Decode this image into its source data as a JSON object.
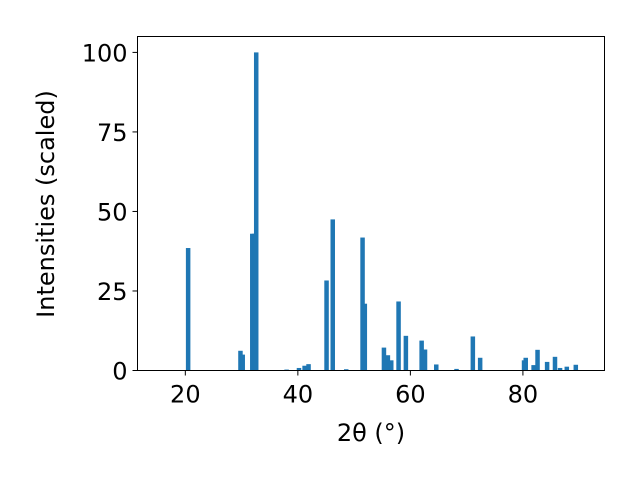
{
  "chart_data": {
    "type": "bar",
    "title": "",
    "xlabel": "2θ (°)",
    "ylabel": "Intensities (scaled)",
    "xlim": [
      11.5,
      94.5
    ],
    "ylim": [
      0,
      105
    ],
    "x_ticks": [
      20,
      40,
      60,
      80
    ],
    "y_ticks": [
      0,
      25,
      50,
      75,
      100
    ],
    "x_tick_labels": [
      "20",
      "40",
      "60",
      "80"
    ],
    "y_tick_labels": [
      "0",
      "25",
      "50",
      "75",
      "100"
    ],
    "grid": false,
    "bar_color": "#1f77b4",
    "bar_width": 0.8,
    "x": [
      20.5,
      29.8,
      30.2,
      31.9,
      32.3,
      32.6,
      38.0,
      40.2,
      41.2,
      41.9,
      45.1,
      46.2,
      48.6,
      51.5,
      51.9,
      55.3,
      56.0,
      56.6,
      57.9,
      59.2,
      62.0,
      62.6,
      64.6,
      68.2,
      71.1,
      72.4,
      80.2,
      80.5,
      81.9,
      82.6,
      84.3,
      85.7,
      86.6,
      87.8,
      89.4
    ],
    "y": [
      38.5,
      6.2,
      5.0,
      43.0,
      43.0,
      100.0,
      0.3,
      0.8,
      1.5,
      2.0,
      28.3,
      47.5,
      0.4,
      41.8,
      21.0,
      7.2,
      4.8,
      3.2,
      21.7,
      10.9,
      9.4,
      6.6,
      1.9,
      0.5,
      10.7,
      4.0,
      3.2,
      4.0,
      1.7,
      6.5,
      2.7,
      4.3,
      0.8,
      1.2,
      1.8
    ]
  }
}
